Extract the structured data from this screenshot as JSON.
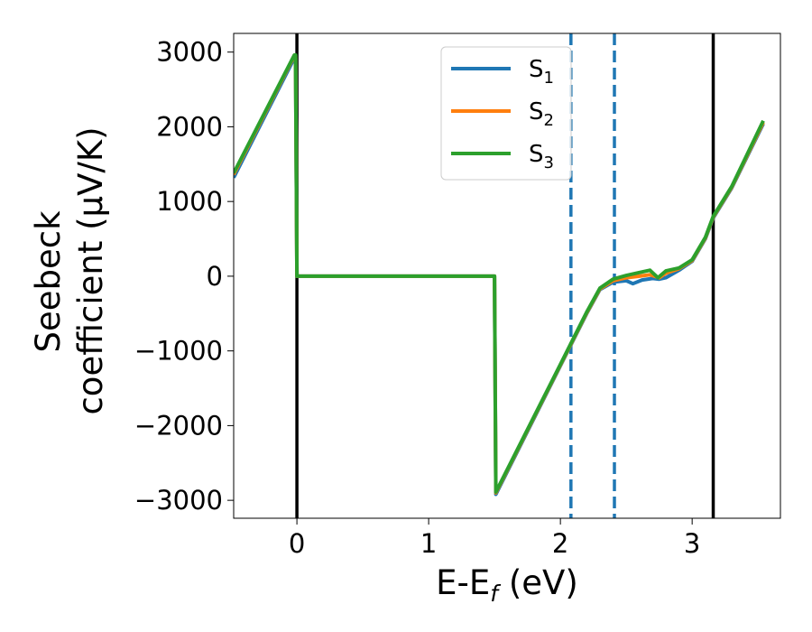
{
  "chart_data": {
    "type": "line",
    "xlabel": "E-E_f (eV)",
    "xlabel_parts": {
      "main": "E-E",
      "sub": "f",
      "rest": " (eV)"
    },
    "ylabel_line1": "Seebeck",
    "ylabel_line2": "coefficient  (μV/K)",
    "xlim": [
      -0.48,
      3.67
    ],
    "ylim": [
      -3240,
      3250
    ],
    "xticks": [
      0,
      1,
      2,
      3
    ],
    "xtick_labels": [
      "0",
      "1",
      "2",
      "3"
    ],
    "yticks": [
      3000,
      2000,
      1000,
      0,
      -1000,
      -2000,
      -3000
    ],
    "ytick_labels": [
      "3000",
      "2000",
      "1000",
      "0",
      "−1000",
      "−2000",
      "−3000"
    ],
    "grid": false,
    "legend_placement": "upper-center",
    "vlines": [
      {
        "x": 0.0,
        "style": "solid",
        "color": "#000000"
      },
      {
        "x": 3.16,
        "style": "solid",
        "color": "#000000"
      },
      {
        "x": 2.08,
        "style": "dashed",
        "color": "#1f77b4"
      },
      {
        "x": 2.41,
        "style": "dashed",
        "color": "#1f77b4"
      }
    ],
    "series": [
      {
        "name": "S1",
        "name_main": "S",
        "name_sub": "1",
        "color": "#1f77b4",
        "points": [
          [
            -0.48,
            1320
          ],
          [
            -0.02,
            2920
          ],
          [
            -0.01,
            2920
          ],
          [
            0.0,
            0
          ],
          [
            1.5,
            0
          ],
          [
            1.51,
            -2920
          ],
          [
            2.0,
            -1200
          ],
          [
            2.2,
            -500
          ],
          [
            2.3,
            -180
          ],
          [
            2.4,
            -80
          ],
          [
            2.5,
            -60
          ],
          [
            2.55,
            -100
          ],
          [
            2.62,
            -50
          ],
          [
            2.7,
            -30
          ],
          [
            2.75,
            -40
          ],
          [
            2.8,
            -20
          ],
          [
            2.9,
            80
          ],
          [
            3.0,
            200
          ],
          [
            3.1,
            500
          ],
          [
            3.16,
            780
          ],
          [
            3.3,
            1180
          ],
          [
            3.54,
            2040
          ]
        ]
      },
      {
        "name": "S2",
        "name_main": "S",
        "name_sub": "2",
        "color": "#ff7f0e",
        "points": [
          [
            -0.48,
            1360
          ],
          [
            -0.02,
            2950
          ],
          [
            -0.01,
            2950
          ],
          [
            0.0,
            0
          ],
          [
            1.5,
            0
          ],
          [
            1.51,
            -2900
          ],
          [
            2.0,
            -1190
          ],
          [
            2.2,
            -490
          ],
          [
            2.3,
            -170
          ],
          [
            2.4,
            -60
          ],
          [
            2.5,
            -20
          ],
          [
            2.6,
            0
          ],
          [
            2.68,
            20
          ],
          [
            2.75,
            -20
          ],
          [
            2.8,
            40
          ],
          [
            2.9,
            100
          ],
          [
            3.0,
            210
          ],
          [
            3.1,
            510
          ],
          [
            3.16,
            790
          ],
          [
            3.3,
            1190
          ],
          [
            3.54,
            2060
          ]
        ]
      },
      {
        "name": "S3",
        "name_main": "S",
        "name_sub": "3",
        "color": "#2ca02c",
        "points": [
          [
            -0.48,
            1380
          ],
          [
            -0.02,
            2960
          ],
          [
            -0.01,
            2960
          ],
          [
            0.0,
            0
          ],
          [
            1.5,
            0
          ],
          [
            1.51,
            -2890
          ],
          [
            2.0,
            -1180
          ],
          [
            2.2,
            -480
          ],
          [
            2.3,
            -160
          ],
          [
            2.4,
            -40
          ],
          [
            2.5,
            10
          ],
          [
            2.6,
            50
          ],
          [
            2.68,
            80
          ],
          [
            2.74,
            -20
          ],
          [
            2.8,
            70
          ],
          [
            2.9,
            110
          ],
          [
            3.0,
            220
          ],
          [
            3.1,
            520
          ],
          [
            3.16,
            800
          ],
          [
            3.3,
            1200
          ],
          [
            3.54,
            2080
          ]
        ]
      }
    ]
  }
}
